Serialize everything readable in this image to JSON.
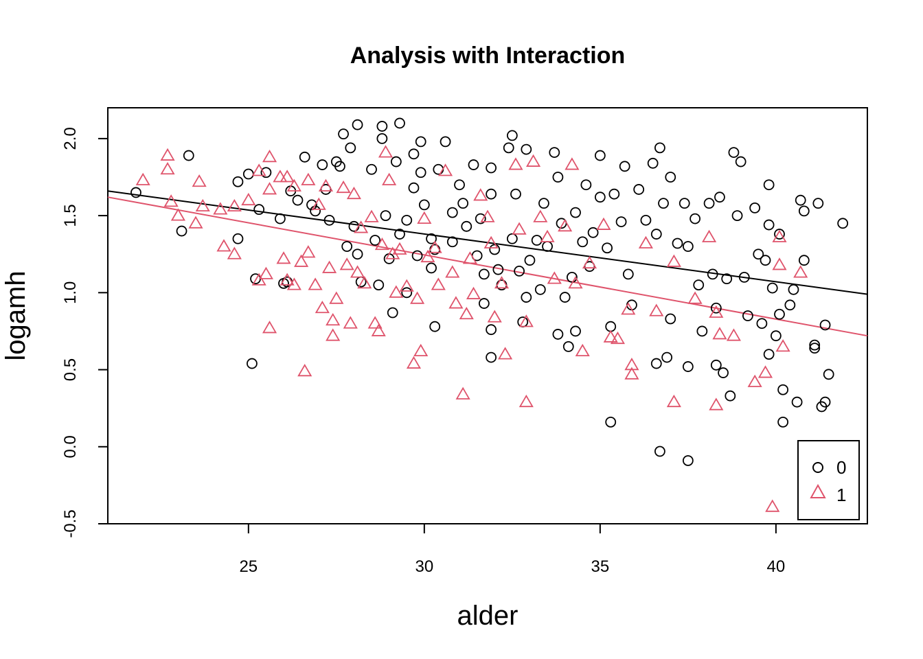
{
  "chart_data": {
    "type": "scatter",
    "title": "Analysis with Interaction",
    "xlabel": "alder",
    "ylabel": "logamh",
    "xlim": [
      21.0,
      42.6
    ],
    "ylim": [
      -0.5,
      2.2
    ],
    "xticks": [
      25,
      30,
      35,
      40
    ],
    "yticks": [
      -0.5,
      0.0,
      0.5,
      1.0,
      1.5,
      2.0
    ],
    "xtick_labels": [
      "25",
      "30",
      "35",
      "40"
    ],
    "ytick_labels": [
      "-0.5",
      "0.0",
      "0.5",
      "1.0",
      "1.5",
      "2.0"
    ],
    "grid": false,
    "legend_position": "bottom-right",
    "colors": {
      "group0": "#000000",
      "group1": "#DF536B"
    },
    "series": [
      {
        "name": "0",
        "marker": "circle",
        "color": "#000000",
        "points": [
          [
            21.8,
            1.65
          ],
          [
            23.3,
            1.89
          ],
          [
            23.1,
            1.4
          ],
          [
            24.7,
            1.72
          ],
          [
            24.7,
            1.35
          ],
          [
            25.2,
            1.09
          ],
          [
            25.1,
            0.54
          ],
          [
            25.0,
            1.77
          ],
          [
            25.5,
            1.78
          ],
          [
            25.3,
            1.54
          ],
          [
            25.9,
            1.48
          ],
          [
            26.1,
            1.07
          ],
          [
            26.0,
            1.06
          ],
          [
            26.2,
            1.66
          ],
          [
            26.4,
            1.6
          ],
          [
            26.6,
            1.88
          ],
          [
            26.8,
            1.57
          ],
          [
            26.9,
            1.53
          ],
          [
            27.1,
            1.83
          ],
          [
            27.2,
            1.67
          ],
          [
            27.3,
            1.47
          ],
          [
            27.5,
            1.85
          ],
          [
            27.6,
            1.82
          ],
          [
            27.7,
            2.03
          ],
          [
            27.9,
            1.94
          ],
          [
            28.1,
            2.09
          ],
          [
            27.8,
            1.3
          ],
          [
            28.0,
            1.43
          ],
          [
            28.1,
            1.25
          ],
          [
            28.2,
            1.07
          ],
          [
            28.5,
            1.8
          ],
          [
            28.6,
            1.34
          ],
          [
            28.7,
            1.05
          ],
          [
            28.8,
            2.0
          ],
          [
            28.8,
            2.08
          ],
          [
            28.9,
            1.5
          ],
          [
            29.0,
            1.22
          ],
          [
            29.1,
            0.87
          ],
          [
            29.3,
            2.1
          ],
          [
            29.2,
            1.85
          ],
          [
            29.3,
            1.38
          ],
          [
            29.5,
            1.0
          ],
          [
            29.5,
            1.47
          ],
          [
            29.7,
            1.68
          ],
          [
            29.7,
            1.9
          ],
          [
            29.8,
            1.24
          ],
          [
            29.9,
            1.78
          ],
          [
            29.9,
            1.98
          ],
          [
            30.0,
            1.57
          ],
          [
            30.2,
            1.35
          ],
          [
            30.2,
            1.16
          ],
          [
            30.3,
            1.28
          ],
          [
            30.4,
            1.8
          ],
          [
            30.3,
            0.78
          ],
          [
            30.6,
            1.98
          ],
          [
            30.8,
            1.33
          ],
          [
            30.8,
            1.52
          ],
          [
            31.0,
            1.7
          ],
          [
            31.1,
            1.58
          ],
          [
            31.2,
            1.43
          ],
          [
            31.4,
            1.83
          ],
          [
            31.5,
            1.24
          ],
          [
            31.6,
            1.48
          ],
          [
            31.7,
            1.12
          ],
          [
            31.7,
            0.93
          ],
          [
            31.9,
            1.81
          ],
          [
            31.9,
            1.64
          ],
          [
            31.9,
            0.76
          ],
          [
            31.9,
            0.58
          ],
          [
            32.0,
            1.28
          ],
          [
            32.1,
            1.15
          ],
          [
            32.2,
            1.05
          ],
          [
            32.4,
            1.94
          ],
          [
            32.5,
            2.02
          ],
          [
            32.6,
            1.64
          ],
          [
            32.5,
            1.35
          ],
          [
            32.7,
            1.14
          ],
          [
            32.8,
            0.81
          ],
          [
            32.9,
            1.93
          ],
          [
            32.9,
            0.97
          ],
          [
            33.0,
            1.21
          ],
          [
            33.2,
            1.34
          ],
          [
            33.3,
            1.02
          ],
          [
            33.4,
            1.58
          ],
          [
            33.5,
            1.3
          ],
          [
            33.7,
            1.91
          ],
          [
            33.8,
            1.75
          ],
          [
            33.9,
            1.45
          ],
          [
            33.8,
            0.73
          ],
          [
            34.0,
            0.97
          ],
          [
            34.1,
            0.65
          ],
          [
            34.2,
            1.1
          ],
          [
            34.3,
            1.52
          ],
          [
            34.3,
            0.75
          ],
          [
            34.5,
            1.33
          ],
          [
            34.6,
            1.7
          ],
          [
            34.7,
            1.17
          ],
          [
            34.8,
            1.39
          ],
          [
            35.0,
            1.62
          ],
          [
            35.0,
            1.89
          ],
          [
            35.2,
            1.29
          ],
          [
            35.3,
            0.78
          ],
          [
            35.3,
            0.16
          ],
          [
            35.4,
            1.64
          ],
          [
            35.6,
            1.46
          ],
          [
            35.7,
            1.82
          ],
          [
            35.8,
            1.12
          ],
          [
            35.9,
            0.92
          ],
          [
            36.1,
            1.67
          ],
          [
            36.3,
            1.47
          ],
          [
            36.5,
            1.84
          ],
          [
            36.6,
            1.38
          ],
          [
            36.6,
            0.54
          ],
          [
            36.7,
            1.94
          ],
          [
            36.8,
            1.58
          ],
          [
            36.9,
            0.58
          ],
          [
            37.0,
            1.75
          ],
          [
            37.0,
            0.83
          ],
          [
            36.7,
            -0.03
          ],
          [
            37.2,
            1.32
          ],
          [
            37.4,
            1.58
          ],
          [
            37.5,
            1.3
          ],
          [
            37.5,
            0.52
          ],
          [
            37.5,
            -0.09
          ],
          [
            37.7,
            1.48
          ],
          [
            37.8,
            1.05
          ],
          [
            37.9,
            0.75
          ],
          [
            38.1,
            1.58
          ],
          [
            38.2,
            1.12
          ],
          [
            38.3,
            0.9
          ],
          [
            38.3,
            0.53
          ],
          [
            38.4,
            1.62
          ],
          [
            38.5,
            0.48
          ],
          [
            38.6,
            1.09
          ],
          [
            38.7,
            0.33
          ],
          [
            38.8,
            1.91
          ],
          [
            38.9,
            1.5
          ],
          [
            39.0,
            1.85
          ],
          [
            39.1,
            1.1
          ],
          [
            39.2,
            0.85
          ],
          [
            39.4,
            1.55
          ],
          [
            39.5,
            1.25
          ],
          [
            39.6,
            0.8
          ],
          [
            39.7,
            1.21
          ],
          [
            39.8,
            1.44
          ],
          [
            39.8,
            0.6
          ],
          [
            39.9,
            1.03
          ],
          [
            39.8,
            1.7
          ],
          [
            40.0,
            0.72
          ],
          [
            40.1,
            1.38
          ],
          [
            40.1,
            0.86
          ],
          [
            40.2,
            0.37
          ],
          [
            40.2,
            0.16
          ],
          [
            40.4,
            0.92
          ],
          [
            40.5,
            1.02
          ],
          [
            40.6,
            0.29
          ],
          [
            40.7,
            1.6
          ],
          [
            40.8,
            1.21
          ],
          [
            40.8,
            1.53
          ],
          [
            41.1,
            0.66
          ],
          [
            41.1,
            0.64
          ],
          [
            41.2,
            1.58
          ],
          [
            41.3,
            0.26
          ],
          [
            41.4,
            0.79
          ],
          [
            41.5,
            0.47
          ],
          [
            41.4,
            0.29
          ],
          [
            41.9,
            1.45
          ]
        ]
      },
      {
        "name": "1",
        "marker": "triangle",
        "color": "#DF536B",
        "points": [
          [
            22.0,
            1.73
          ],
          [
            22.7,
            1.89
          ],
          [
            22.7,
            1.8
          ],
          [
            22.8,
            1.59
          ],
          [
            23.0,
            1.5
          ],
          [
            23.5,
            1.45
          ],
          [
            23.6,
            1.72
          ],
          [
            23.7,
            1.56
          ],
          [
            24.2,
            1.54
          ],
          [
            24.3,
            1.3
          ],
          [
            24.6,
            1.25
          ],
          [
            24.6,
            1.56
          ],
          [
            25.0,
            1.6
          ],
          [
            25.3,
            1.79
          ],
          [
            25.3,
            1.08
          ],
          [
            25.5,
            1.12
          ],
          [
            25.6,
            1.88
          ],
          [
            25.6,
            1.67
          ],
          [
            25.6,
            0.77
          ],
          [
            25.9,
            1.75
          ],
          [
            26.0,
            1.22
          ],
          [
            26.1,
            1.08
          ],
          [
            26.1,
            1.75
          ],
          [
            26.3,
            1.69
          ],
          [
            26.3,
            1.05
          ],
          [
            26.5,
            1.2
          ],
          [
            26.6,
            0.49
          ],
          [
            26.7,
            1.73
          ],
          [
            26.7,
            1.26
          ],
          [
            26.9,
            1.05
          ],
          [
            27.0,
            1.57
          ],
          [
            27.1,
            0.9
          ],
          [
            27.2,
            1.69
          ],
          [
            27.3,
            1.16
          ],
          [
            27.4,
            0.82
          ],
          [
            27.4,
            0.72
          ],
          [
            27.5,
            0.96
          ],
          [
            27.7,
            1.68
          ],
          [
            27.8,
            1.18
          ],
          [
            27.9,
            0.8
          ],
          [
            28.0,
            1.64
          ],
          [
            28.2,
            1.42
          ],
          [
            28.1,
            1.13
          ],
          [
            28.3,
            1.06
          ],
          [
            28.5,
            1.49
          ],
          [
            28.6,
            0.8
          ],
          [
            28.7,
            0.75
          ],
          [
            28.8,
            1.31
          ],
          [
            28.9,
            1.91
          ],
          [
            29.0,
            1.73
          ],
          [
            29.1,
            1.25
          ],
          [
            29.2,
            1.0
          ],
          [
            29.3,
            1.28
          ],
          [
            29.5,
            1.04
          ],
          [
            29.7,
            0.54
          ],
          [
            29.8,
            0.96
          ],
          [
            29.9,
            0.62
          ],
          [
            30.0,
            1.48
          ],
          [
            30.1,
            1.23
          ],
          [
            30.3,
            1.29
          ],
          [
            30.4,
            1.05
          ],
          [
            30.6,
            1.79
          ],
          [
            30.8,
            1.13
          ],
          [
            30.9,
            0.93
          ],
          [
            31.1,
            0.34
          ],
          [
            31.2,
            0.86
          ],
          [
            31.3,
            1.22
          ],
          [
            31.4,
            0.99
          ],
          [
            31.6,
            1.63
          ],
          [
            31.8,
            1.49
          ],
          [
            31.9,
            1.32
          ],
          [
            32.0,
            0.84
          ],
          [
            32.2,
            1.06
          ],
          [
            32.3,
            0.6
          ],
          [
            32.6,
            1.83
          ],
          [
            32.7,
            1.41
          ],
          [
            32.9,
            0.81
          ],
          [
            32.9,
            0.29
          ],
          [
            33.1,
            1.85
          ],
          [
            33.3,
            1.49
          ],
          [
            33.5,
            1.36
          ],
          [
            33.7,
            1.09
          ],
          [
            34.0,
            1.43
          ],
          [
            34.2,
            1.83
          ],
          [
            34.3,
            1.06
          ],
          [
            34.5,
            0.62
          ],
          [
            34.7,
            1.19
          ],
          [
            35.1,
            1.44
          ],
          [
            35.3,
            0.71
          ],
          [
            35.5,
            0.7
          ],
          [
            35.8,
            0.89
          ],
          [
            35.9,
            0.53
          ],
          [
            35.9,
            0.47
          ],
          [
            36.3,
            1.32
          ],
          [
            36.6,
            0.88
          ],
          [
            37.1,
            1.2
          ],
          [
            37.1,
            0.29
          ],
          [
            37.7,
            0.96
          ],
          [
            38.1,
            1.36
          ],
          [
            38.3,
            0.87
          ],
          [
            38.3,
            0.27
          ],
          [
            38.4,
            0.73
          ],
          [
            38.8,
            0.72
          ],
          [
            39.4,
            0.42
          ],
          [
            39.7,
            0.48
          ],
          [
            39.9,
            -0.39
          ],
          [
            40.1,
            1.36
          ],
          [
            40.1,
            1.18
          ],
          [
            40.2,
            0.65
          ],
          [
            40.7,
            1.13
          ]
        ]
      }
    ],
    "fit_lines": [
      {
        "name": "0",
        "color": "#000000",
        "x": [
          21.0,
          42.6
        ],
        "y": [
          1.66,
          0.99
        ]
      },
      {
        "name": "1",
        "color": "#DF536B",
        "x": [
          21.0,
          42.6
        ],
        "y": [
          1.62,
          0.72
        ]
      }
    ],
    "legend": {
      "entries": [
        "0",
        "1"
      ]
    }
  }
}
